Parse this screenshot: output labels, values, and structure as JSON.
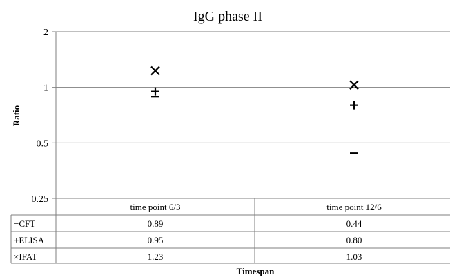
{
  "chart_data": {
    "type": "scatter",
    "title": "IgG phase II",
    "xlabel": "Timespan",
    "ylabel": "Ratio",
    "yscale": "log2",
    "ylim": [
      0.25,
      2
    ],
    "y_ticks": [
      "2",
      "1",
      "0.5",
      "0.25"
    ],
    "y_tick_values": [
      2,
      1,
      0.5,
      0.25
    ],
    "grid": true,
    "categories": [
      "time point 6/3",
      "time point 12/6"
    ],
    "series": [
      {
        "name": "CFT",
        "marker": "−",
        "values": [
          0.89,
          0.44
        ],
        "labels": [
          "0.89",
          "0.44"
        ]
      },
      {
        "name": "ELISA",
        "marker": "+",
        "values": [
          0.95,
          0.8
        ],
        "labels": [
          "0.95",
          "0.80"
        ]
      },
      {
        "name": "IFAT",
        "marker": "×",
        "values": [
          1.23,
          1.03
        ],
        "labels": [
          "1.23",
          "1.03"
        ]
      }
    ],
    "line_color": "#000000",
    "grid_color": "#7f7f7f"
  }
}
